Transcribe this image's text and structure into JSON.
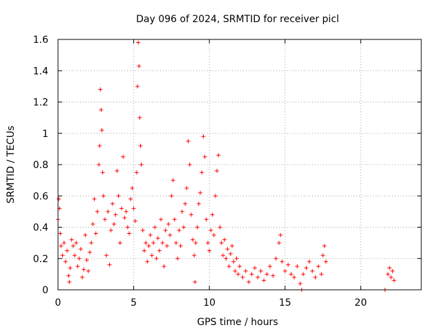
{
  "chart_data": {
    "type": "scatter",
    "title": "Day 096 of 2024, SRMTID for receiver picl",
    "xlabel": "GPS time / hours",
    "ylabel": "SRMTID / TECUs",
    "xlim": [
      0,
      24
    ],
    "ylim": [
      0,
      1.6
    ],
    "xticks": [
      0,
      5,
      10,
      15,
      20
    ],
    "xtick_labels": [
      "0",
      "5",
      "10",
      "15",
      "20"
    ],
    "yticks": [
      0,
      0.2,
      0.4,
      0.6,
      0.8,
      1,
      1.2,
      1.4,
      1.6
    ],
    "ytick_labels": [
      "0",
      "0.2",
      "0.4",
      "0.6",
      "0.8",
      "1",
      "1.2",
      "1.4",
      "1.6"
    ],
    "grid": true,
    "legend": "none",
    "marker": "+",
    "color": "#ff0000",
    "series": [
      {
        "name": "SRMTID",
        "points": [
          [
            0.0,
            0.45
          ],
          [
            0.05,
            0.58
          ],
          [
            0.1,
            0.52
          ],
          [
            0.15,
            0.36
          ],
          [
            0.2,
            0.28
          ],
          [
            0.3,
            0.22
          ],
          [
            0.4,
            0.3
          ],
          [
            0.5,
            0.18
          ],
          [
            0.6,
            0.25
          ],
          [
            0.7,
            0.09
          ],
          [
            0.75,
            0.05
          ],
          [
            0.8,
            0.14
          ],
          [
            0.9,
            0.32
          ],
          [
            1.0,
            0.28
          ],
          [
            1.1,
            0.22
          ],
          [
            1.2,
            0.3
          ],
          [
            1.3,
            0.15
          ],
          [
            1.4,
            0.2
          ],
          [
            1.5,
            0.26
          ],
          [
            1.6,
            0.08
          ],
          [
            1.7,
            0.13
          ],
          [
            1.8,
            0.35
          ],
          [
            1.9,
            0.19
          ],
          [
            2.0,
            0.12
          ],
          [
            2.1,
            0.24
          ],
          [
            2.2,
            0.3
          ],
          [
            2.3,
            0.42
          ],
          [
            2.4,
            0.58
          ],
          [
            2.5,
            0.36
          ],
          [
            2.6,
            0.5
          ],
          [
            2.7,
            0.8
          ],
          [
            2.75,
            0.92
          ],
          [
            2.8,
            1.28
          ],
          [
            2.85,
            1.15
          ],
          [
            2.9,
            1.02
          ],
          [
            2.95,
            0.75
          ],
          [
            3.0,
            0.6
          ],
          [
            3.1,
            0.45
          ],
          [
            3.2,
            0.22
          ],
          [
            3.3,
            0.5
          ],
          [
            3.4,
            0.16
          ],
          [
            3.5,
            0.38
          ],
          [
            3.6,
            0.55
          ],
          [
            3.7,
            0.42
          ],
          [
            3.8,
            0.48
          ],
          [
            3.9,
            0.76
          ],
          [
            4.0,
            0.6
          ],
          [
            4.1,
            0.3
          ],
          [
            4.2,
            0.52
          ],
          [
            4.3,
            0.85
          ],
          [
            4.4,
            0.46
          ],
          [
            4.5,
            0.5
          ],
          [
            4.6,
            0.4
          ],
          [
            4.7,
            0.36
          ],
          [
            4.8,
            0.58
          ],
          [
            4.9,
            0.65
          ],
          [
            5.0,
            0.52
          ],
          [
            5.1,
            0.44
          ],
          [
            5.2,
            0.75
          ],
          [
            5.25,
            1.3
          ],
          [
            5.3,
            1.58
          ],
          [
            5.35,
            1.43
          ],
          [
            5.4,
            1.1
          ],
          [
            5.45,
            0.92
          ],
          [
            5.5,
            0.8
          ],
          [
            5.6,
            0.38
          ],
          [
            5.7,
            0.25
          ],
          [
            5.8,
            0.3
          ],
          [
            5.9,
            0.18
          ],
          [
            6.0,
            0.28
          ],
          [
            6.1,
            0.35
          ],
          [
            6.2,
            0.22
          ],
          [
            6.3,
            0.3
          ],
          [
            6.4,
            0.4
          ],
          [
            6.5,
            0.2
          ],
          [
            6.6,
            0.33
          ],
          [
            6.7,
            0.25
          ],
          [
            6.8,
            0.45
          ],
          [
            6.9,
            0.3
          ],
          [
            7.0,
            0.15
          ],
          [
            7.1,
            0.38
          ],
          [
            7.2,
            0.28
          ],
          [
            7.3,
            0.42
          ],
          [
            7.4,
            0.35
          ],
          [
            7.5,
            0.6
          ],
          [
            7.6,
            0.7
          ],
          [
            7.7,
            0.45
          ],
          [
            7.8,
            0.3
          ],
          [
            7.9,
            0.2
          ],
          [
            8.0,
            0.38
          ],
          [
            8.1,
            0.28
          ],
          [
            8.2,
            0.5
          ],
          [
            8.3,
            0.4
          ],
          [
            8.4,
            0.55
          ],
          [
            8.5,
            0.65
          ],
          [
            8.6,
            0.95
          ],
          [
            8.7,
            0.8
          ],
          [
            8.8,
            0.48
          ],
          [
            8.9,
            0.32
          ],
          [
            9.0,
            0.22
          ],
          [
            9.05,
            0.05
          ],
          [
            9.1,
            0.3
          ],
          [
            9.2,
            0.4
          ],
          [
            9.3,
            0.55
          ],
          [
            9.4,
            0.62
          ],
          [
            9.5,
            0.75
          ],
          [
            9.6,
            0.98
          ],
          [
            9.7,
            0.85
          ],
          [
            9.8,
            0.45
          ],
          [
            9.9,
            0.3
          ],
          [
            10.0,
            0.25
          ],
          [
            10.1,
            0.38
          ],
          [
            10.2,
            0.48
          ],
          [
            10.3,
            0.35
          ],
          [
            10.4,
            0.6
          ],
          [
            10.5,
            0.76
          ],
          [
            10.6,
            0.86
          ],
          [
            10.7,
            0.4
          ],
          [
            10.8,
            0.3
          ],
          [
            10.9,
            0.22
          ],
          [
            11.0,
            0.32
          ],
          [
            11.1,
            0.2
          ],
          [
            11.2,
            0.26
          ],
          [
            11.3,
            0.15
          ],
          [
            11.4,
            0.23
          ],
          [
            11.5,
            0.28
          ],
          [
            11.6,
            0.18
          ],
          [
            11.7,
            0.12
          ],
          [
            11.8,
            0.2
          ],
          [
            11.9,
            0.1
          ],
          [
            12.0,
            0.15
          ],
          [
            12.2,
            0.08
          ],
          [
            12.4,
            0.12
          ],
          [
            12.6,
            0.05
          ],
          [
            12.8,
            0.1
          ],
          [
            13.0,
            0.14
          ],
          [
            13.2,
            0.08
          ],
          [
            13.4,
            0.12
          ],
          [
            13.6,
            0.06
          ],
          [
            13.8,
            0.1
          ],
          [
            14.0,
            0.15
          ],
          [
            14.2,
            0.09
          ],
          [
            14.4,
            0.2
          ],
          [
            14.6,
            0.3
          ],
          [
            14.7,
            0.35
          ],
          [
            14.8,
            0.18
          ],
          [
            15.0,
            0.12
          ],
          [
            15.2,
            0.16
          ],
          [
            15.4,
            0.1
          ],
          [
            15.6,
            0.08
          ],
          [
            15.8,
            0.15
          ],
          [
            16.0,
            0.04
          ],
          [
            16.1,
            0.0
          ],
          [
            16.2,
            0.1
          ],
          [
            16.4,
            0.14
          ],
          [
            16.6,
            0.18
          ],
          [
            16.8,
            0.12
          ],
          [
            17.0,
            0.08
          ],
          [
            17.2,
            0.15
          ],
          [
            17.4,
            0.1
          ],
          [
            17.5,
            0.22
          ],
          [
            17.6,
            0.28
          ],
          [
            17.7,
            0.18
          ],
          [
            21.6,
            0.0
          ],
          [
            21.8,
            0.1
          ],
          [
            21.9,
            0.14
          ],
          [
            22.0,
            0.08
          ],
          [
            22.1,
            0.12
          ],
          [
            22.2,
            0.06
          ]
        ]
      }
    ]
  }
}
